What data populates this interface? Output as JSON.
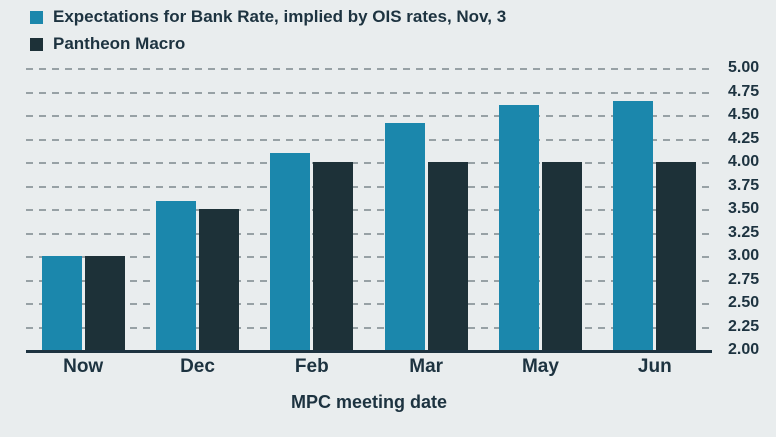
{
  "chart_data": {
    "type": "bar",
    "title": "",
    "xlabel": "MPC meeting date",
    "ylabel": "",
    "categories": [
      "Now",
      "Dec",
      "Feb",
      "Mar",
      "May",
      "Jun"
    ],
    "series": [
      {
        "name": "Expectations for Bank Rate, implied by OIS rates, Nov, 3",
        "key": "ois",
        "color": "#1b87ac",
        "values": [
          3.0,
          3.58,
          4.1,
          4.42,
          4.61,
          4.65
        ]
      },
      {
        "name": "Pantheon Macro",
        "key": "pantheon",
        "color": "#1d3138",
        "values": [
          3.0,
          3.5,
          4.0,
          4.0,
          4.0,
          4.0
        ]
      }
    ],
    "ylim": [
      2.0,
      5.0
    ],
    "ytick_step": 0.25,
    "yticks": [
      "2.00",
      "2.25",
      "2.50",
      "2.75",
      "3.00",
      "3.25",
      "3.50",
      "3.75",
      "4.00",
      "4.25",
      "4.50",
      "4.75",
      "5.00"
    ],
    "grid": "dashed horizontal",
    "legend_position": "top-left",
    "y_axis_side": "right"
  },
  "colors": {
    "background": "#e9edee",
    "text": "#1d3340",
    "gridline": "#97a1a5",
    "axis": "#1d3340"
  }
}
